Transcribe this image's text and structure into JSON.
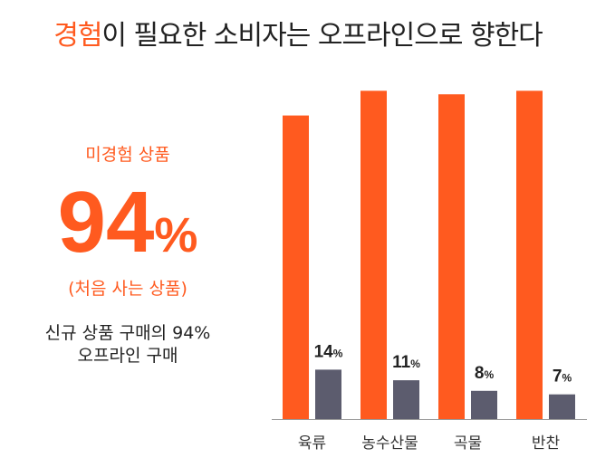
{
  "header": {
    "title_accent": "경험",
    "title_rest": "이 필요한 소비자는 오프라인으로 향한다"
  },
  "callout": {
    "label": "미경험 상품",
    "big_number": "94",
    "big_unit": "%",
    "paren_note": "(처음 사는 상품)",
    "desc_line1": "신규 상품 구매의 94%",
    "desc_line2": "오프라인 구매"
  },
  "colors": {
    "accent": "#ff5a1f",
    "dark_bar": "#5c5c6e",
    "axis": "#9a9a9a"
  },
  "chart_data": {
    "type": "bar",
    "categories": [
      "육류",
      "농수산물",
      "곡물",
      "반찬"
    ],
    "series": [
      {
        "values": [
          86,
          93,
          92,
          93
        ],
        "color": "#ff5a1f"
      },
      {
        "values": [
          14,
          11,
          8,
          7
        ],
        "color": "#5c5c6e"
      }
    ],
    "data_labels": [
      "14",
      "11",
      "8",
      "7"
    ],
    "data_label_unit": "%",
    "ylim": [
      0,
      100
    ],
    "grid": false
  }
}
